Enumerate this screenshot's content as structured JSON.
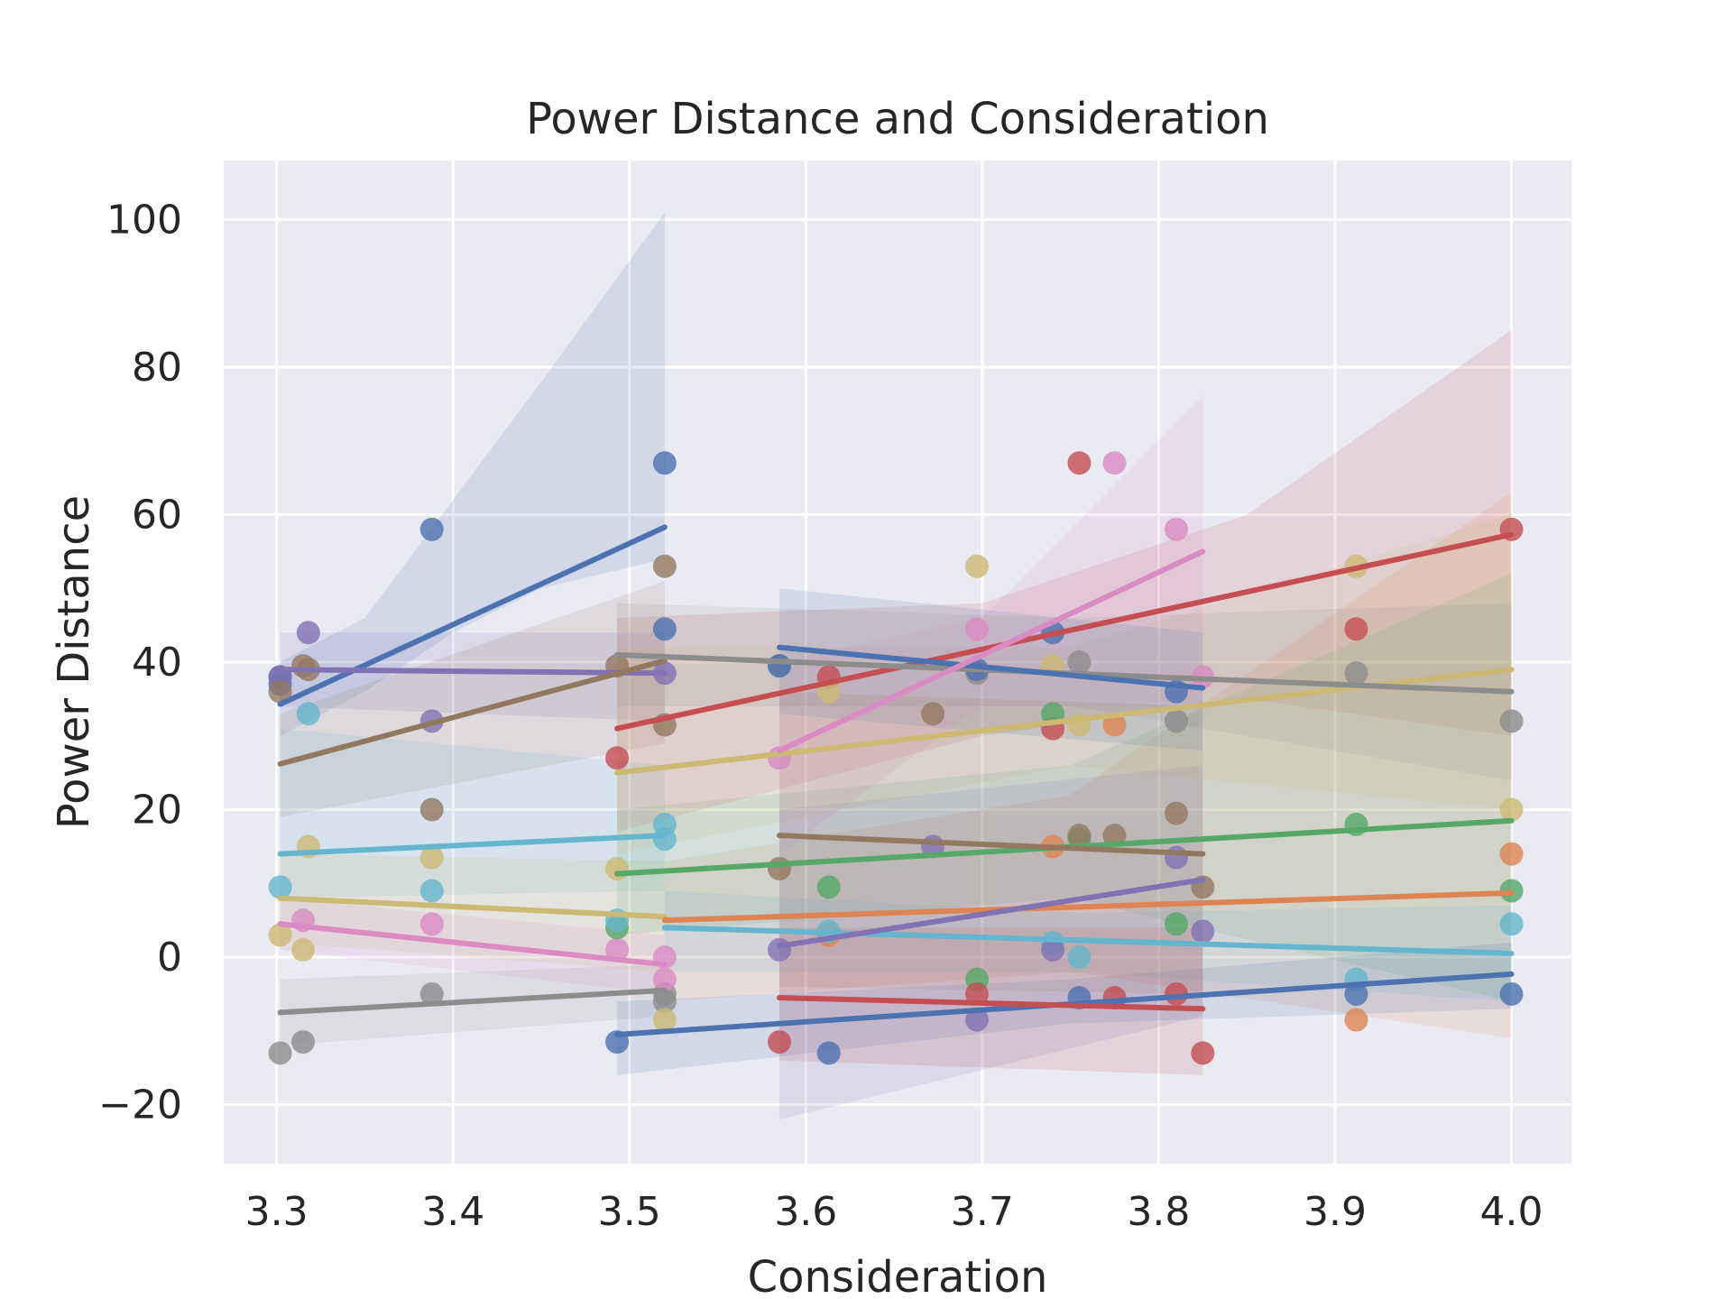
{
  "chart_data": {
    "type": "scatter",
    "title": "Power Distance and Consideration",
    "xlabel": "Consideration",
    "ylabel": "Power Distance",
    "xlim": [
      3.27,
      4.034
    ],
    "ylim": [
      -28,
      108
    ],
    "xticks": [
      3.3,
      3.4,
      3.5,
      3.6,
      3.7,
      3.8,
      3.9,
      4.0
    ],
    "xtick_labels": [
      "3.3",
      "3.4",
      "3.5",
      "3.6",
      "3.7",
      "3.8",
      "3.9",
      "4.0"
    ],
    "yticks": [
      -20,
      0,
      20,
      40,
      60,
      80,
      100
    ],
    "ytick_labels": [
      "−20",
      "0",
      "20",
      "40",
      "60",
      "80",
      "100"
    ],
    "grid": true,
    "background": "#eaeaf2",
    "series": [
      {
        "color": "#4c72b0",
        "points": [
          [
            3.302,
            38
          ],
          [
            3.302,
            37
          ],
          [
            3.388,
            58
          ],
          [
            3.52,
            67
          ],
          [
            3.52,
            44.5
          ]
        ],
        "fit": [
          [
            3.302,
            34.3
          ],
          [
            3.52,
            58.3
          ]
        ],
        "band_lower": [
          [
            3.302,
            30
          ],
          [
            3.35,
            36
          ],
          [
            3.4,
            44
          ],
          [
            3.45,
            50
          ],
          [
            3.52,
            54
          ]
        ],
        "band_upper": [
          [
            3.302,
            40
          ],
          [
            3.35,
            46
          ],
          [
            3.4,
            62
          ],
          [
            3.45,
            78
          ],
          [
            3.52,
            101
          ]
        ]
      },
      {
        "color": "#8172b3",
        "points": [
          [
            3.318,
            44
          ],
          [
            3.388,
            32
          ],
          [
            3.52,
            38.5
          ],
          [
            3.302,
            38
          ]
        ],
        "fit": [
          [
            3.302,
            39
          ],
          [
            3.52,
            38.5
          ]
        ],
        "band_lower": [
          [
            3.302,
            34
          ],
          [
            3.52,
            32
          ]
        ],
        "band_upper": [
          [
            3.302,
            44
          ],
          [
            3.52,
            44
          ]
        ]
      },
      {
        "color": "#937860",
        "points": [
          [
            3.302,
            36
          ],
          [
            3.315,
            39.5
          ],
          [
            3.318,
            39
          ],
          [
            3.388,
            20
          ],
          [
            3.52,
            53
          ],
          [
            3.52,
            31.5
          ],
          [
            3.493,
            39.5
          ]
        ],
        "fit": [
          [
            3.302,
            26.2
          ],
          [
            3.52,
            40.2
          ]
        ],
        "band_lower": [
          [
            3.302,
            19
          ],
          [
            3.52,
            29
          ]
        ],
        "band_upper": [
          [
            3.302,
            33
          ],
          [
            3.52,
            51
          ]
        ]
      },
      {
        "color": "#8c8c8c",
        "points": [
          [
            3.302,
            -13
          ],
          [
            3.315,
            -11.5
          ],
          [
            3.388,
            -5
          ],
          [
            3.52,
            -5
          ],
          [
            3.52,
            -6
          ]
        ],
        "fit": [
          [
            3.302,
            -7.5
          ],
          [
            3.52,
            -4.5
          ]
        ],
        "band_lower": [
          [
            3.302,
            -12
          ],
          [
            3.52,
            -8
          ]
        ],
        "band_upper": [
          [
            3.302,
            -3
          ],
          [
            3.52,
            -1
          ]
        ]
      },
      {
        "color": "#64b5cd",
        "points": [
          [
            3.302,
            9.5
          ],
          [
            3.318,
            33
          ],
          [
            3.52,
            18
          ],
          [
            3.52,
            16
          ],
          [
            3.388,
            9
          ]
        ],
        "fit": [
          [
            3.302,
            14
          ],
          [
            3.52,
            16.5
          ]
        ],
        "band_lower": [
          [
            3.302,
            8
          ],
          [
            3.52,
            9
          ]
        ],
        "band_upper": [
          [
            3.302,
            31
          ],
          [
            3.52,
            26
          ]
        ]
      },
      {
        "color": "#ccb974",
        "points": [
          [
            3.302,
            3
          ],
          [
            3.315,
            1
          ],
          [
            3.318,
            15
          ],
          [
            3.388,
            13.5
          ],
          [
            3.493,
            12
          ],
          [
            3.52,
            -8.5
          ]
        ],
        "fit": [
          [
            3.302,
            8
          ],
          [
            3.52,
            5.5
          ]
        ],
        "band_lower": [
          [
            3.302,
            2
          ],
          [
            3.52,
            -2
          ]
        ],
        "band_upper": [
          [
            3.302,
            14
          ],
          [
            3.52,
            13
          ]
        ]
      },
      {
        "color": "#da8bc3",
        "points": [
          [
            3.315,
            5
          ],
          [
            3.388,
            4.5
          ],
          [
            3.52,
            0
          ],
          [
            3.52,
            -3
          ],
          [
            3.493,
            1
          ]
        ],
        "fit": [
          [
            3.302,
            4.5
          ],
          [
            3.52,
            -1
          ]
        ],
        "band_lower": [
          [
            3.302,
            1
          ],
          [
            3.52,
            -5
          ]
        ],
        "band_upper": [
          [
            3.302,
            8
          ],
          [
            3.52,
            3
          ]
        ]
      },
      {
        "color": "#c44e52",
        "points": [
          [
            3.493,
            27
          ],
          [
            3.613,
            38
          ],
          [
            3.74,
            31
          ],
          [
            3.755,
            67
          ],
          [
            3.912,
            44.5
          ],
          [
            4.0,
            58
          ]
        ],
        "fit": [
          [
            3.493,
            31
          ],
          [
            4.0,
            57.3
          ]
        ],
        "band_lower": [
          [
            3.493,
            17
          ],
          [
            3.7,
            30
          ],
          [
            3.85,
            35
          ],
          [
            4.0,
            30
          ]
        ],
        "band_upper": [
          [
            3.493,
            46
          ],
          [
            3.7,
            48
          ],
          [
            3.85,
            60
          ],
          [
            4.0,
            85
          ]
        ]
      },
      {
        "color": "#dd8452",
        "points": [
          [
            3.613,
            3
          ],
          [
            3.74,
            15
          ],
          [
            3.775,
            31.5
          ],
          [
            3.912,
            -8.5
          ],
          [
            4.0,
            14
          ]
        ],
        "fit": [
          [
            3.52,
            5
          ],
          [
            4.0,
            8.7
          ]
        ],
        "band_lower": [
          [
            3.52,
            -6
          ],
          [
            3.75,
            -2
          ],
          [
            4.0,
            -11
          ]
        ],
        "band_upper": [
          [
            3.52,
            13
          ],
          [
            3.75,
            22
          ],
          [
            4.0,
            63
          ]
        ]
      },
      {
        "color": "#55a868",
        "points": [
          [
            3.493,
            4
          ],
          [
            3.613,
            9.5
          ],
          [
            3.697,
            -3
          ],
          [
            3.74,
            33
          ],
          [
            3.755,
            16
          ],
          [
            3.81,
            4.5
          ],
          [
            3.912,
            18
          ],
          [
            4.0,
            9
          ]
        ],
        "fit": [
          [
            3.493,
            11.3
          ],
          [
            4.0,
            18.5
          ]
        ],
        "band_lower": [
          [
            3.493,
            3
          ],
          [
            3.75,
            8
          ],
          [
            4.0,
            -6
          ]
        ],
        "band_upper": [
          [
            3.493,
            20
          ],
          [
            3.75,
            26
          ],
          [
            4.0,
            52
          ]
        ]
      },
      {
        "color": "#ccb974",
        "points": [
          [
            3.613,
            36
          ],
          [
            3.697,
            53
          ],
          [
            3.74,
            39.5
          ],
          [
            3.755,
            31.5
          ],
          [
            3.912,
            53
          ],
          [
            4.0,
            20
          ]
        ],
        "fit": [
          [
            3.493,
            25
          ],
          [
            4.0,
            39
          ]
        ],
        "band_lower": [
          [
            3.493,
            14
          ],
          [
            3.75,
            26
          ],
          [
            4.0,
            20
          ]
        ],
        "band_upper": [
          [
            3.493,
            42
          ],
          [
            3.75,
            42
          ],
          [
            4.0,
            60
          ]
        ]
      },
      {
        "color": "#8c8c8c",
        "points": [
          [
            3.585,
            39.5
          ],
          [
            3.697,
            38.5
          ],
          [
            3.755,
            40
          ],
          [
            3.81,
            32
          ],
          [
            3.912,
            38.5
          ],
          [
            4.0,
            32
          ]
        ],
        "fit": [
          [
            3.493,
            41
          ],
          [
            4.0,
            36
          ]
        ],
        "band_lower": [
          [
            3.493,
            34
          ],
          [
            3.75,
            34
          ],
          [
            4.0,
            24
          ]
        ],
        "band_upper": [
          [
            3.493,
            48
          ],
          [
            3.75,
            46
          ],
          [
            4.0,
            48
          ]
        ]
      },
      {
        "color": "#64b5cd",
        "points": [
          [
            3.493,
            5
          ],
          [
            3.613,
            3.5
          ],
          [
            3.74,
            2
          ],
          [
            3.755,
            0
          ],
          [
            3.912,
            -3
          ],
          [
            4.0,
            4.5
          ]
        ],
        "fit": [
          [
            3.52,
            4
          ],
          [
            4.0,
            0.5
          ]
        ],
        "band_lower": [
          [
            3.52,
            -2
          ],
          [
            3.75,
            -2
          ],
          [
            4.0,
            -6
          ]
        ],
        "band_upper": [
          [
            3.52,
            9
          ],
          [
            3.75,
            6
          ],
          [
            4.0,
            7
          ]
        ]
      },
      {
        "color": "#4c72b0",
        "points": [
          [
            3.493,
            -11.5
          ],
          [
            3.613,
            -13
          ],
          [
            3.755,
            -5.5
          ],
          [
            3.912,
            -5
          ],
          [
            4.0,
            -5
          ]
        ],
        "fit": [
          [
            3.493,
            -10.5
          ],
          [
            4.0,
            -2.3
          ]
        ],
        "band_lower": [
          [
            3.493,
            -16
          ],
          [
            3.75,
            -9
          ],
          [
            4.0,
            -7
          ]
        ],
        "band_upper": [
          [
            3.493,
            -6
          ],
          [
            3.75,
            -3
          ],
          [
            4.0,
            2
          ]
        ]
      },
      {
        "color": "#4c72b0",
        "points": [
          [
            3.585,
            39.5
          ],
          [
            3.697,
            39
          ],
          [
            3.81,
            36
          ],
          [
            3.74,
            44
          ]
        ],
        "fit": [
          [
            3.585,
            42
          ],
          [
            3.825,
            36.5
          ]
        ],
        "band_lower": [
          [
            3.585,
            33
          ],
          [
            3.825,
            28
          ]
        ],
        "band_upper": [
          [
            3.585,
            50
          ],
          [
            3.825,
            44
          ]
        ]
      },
      {
        "color": "#da8bc3",
        "points": [
          [
            3.585,
            27
          ],
          [
            3.697,
            44.5
          ],
          [
            3.775,
            67
          ],
          [
            3.81,
            58
          ],
          [
            3.825,
            38
          ]
        ],
        "fit": [
          [
            3.585,
            28
          ],
          [
            3.825,
            55
          ]
        ],
        "band_lower": [
          [
            3.585,
            14
          ],
          [
            3.7,
            34
          ],
          [
            3.825,
            34
          ]
        ],
        "band_upper": [
          [
            3.585,
            40
          ],
          [
            3.7,
            46
          ],
          [
            3.825,
            76
          ]
        ]
      },
      {
        "color": "#937860",
        "points": [
          [
            3.585,
            12
          ],
          [
            3.672,
            33
          ],
          [
            3.755,
            16.5
          ],
          [
            3.775,
            16.5
          ],
          [
            3.81,
            19.5
          ],
          [
            3.825,
            9.5
          ]
        ],
        "fit": [
          [
            3.585,
            16.5
          ],
          [
            3.825,
            14
          ]
        ],
        "band_lower": [
          [
            3.585,
            -4
          ],
          [
            3.825,
            -5
          ]
        ],
        "band_upper": [
          [
            3.585,
            36
          ],
          [
            3.825,
            34
          ]
        ]
      },
      {
        "color": "#8172b3",
        "points": [
          [
            3.585,
            1
          ],
          [
            3.672,
            15
          ],
          [
            3.697,
            -8.5
          ],
          [
            3.74,
            1
          ],
          [
            3.81,
            13.5
          ],
          [
            3.825,
            3.5
          ]
        ],
        "fit": [
          [
            3.585,
            1.5
          ],
          [
            3.825,
            10.5
          ]
        ],
        "band_lower": [
          [
            3.585,
            -22
          ],
          [
            3.825,
            -8
          ]
        ],
        "band_upper": [
          [
            3.585,
            20
          ],
          [
            3.825,
            26
          ]
        ]
      },
      {
        "color": "#c44e52",
        "points": [
          [
            3.585,
            -11.5
          ],
          [
            3.697,
            -5
          ],
          [
            3.775,
            -5.5
          ],
          [
            3.81,
            -5
          ],
          [
            3.825,
            -13
          ]
        ],
        "fit": [
          [
            3.585,
            -5.5
          ],
          [
            3.825,
            -7
          ]
        ],
        "band_lower": [
          [
            3.585,
            -14
          ],
          [
            3.825,
            -16
          ]
        ],
        "band_upper": [
          [
            3.585,
            4
          ],
          [
            3.825,
            4
          ]
        ]
      }
    ]
  }
}
